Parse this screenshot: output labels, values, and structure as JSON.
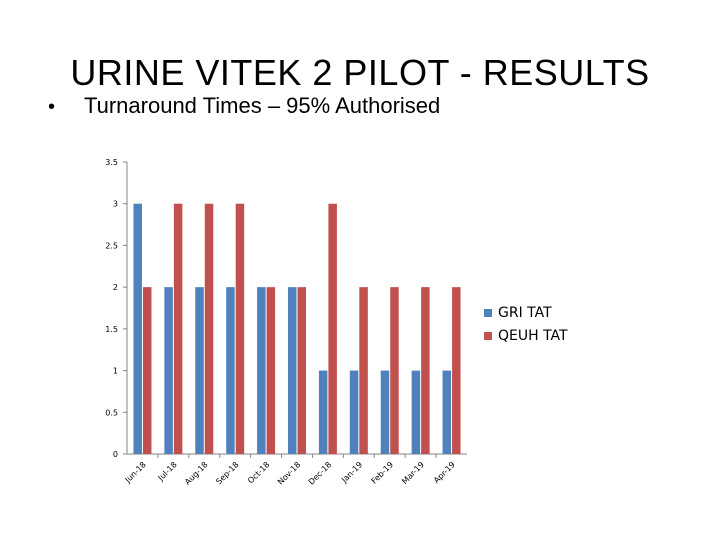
{
  "slide": {
    "title": "URINE VITEK 2 PILOT - RESULTS",
    "bullet_symbol": "•",
    "bullet_text": "Turnaround Times – 95% Authorised"
  },
  "chart_data": {
    "type": "bar",
    "categories": [
      "Jun-18",
      "Jul-18",
      "Aug-18",
      "Sep-18",
      "Oct-18",
      "Nov-18",
      "Dec-18",
      "Jan-19",
      "Feb-19",
      "Mar-19",
      "Apr-19"
    ],
    "series": [
      {
        "name": "GRI TAT",
        "color": "#4f81bd",
        "values": [
          3,
          2,
          2,
          2,
          2,
          2,
          1,
          1,
          1,
          1,
          1
        ]
      },
      {
        "name": "QEUH TAT",
        "color": "#c0504d",
        "values": [
          2,
          3,
          3,
          3,
          2,
          2,
          3,
          2,
          2,
          2,
          2
        ]
      }
    ],
    "ylim": [
      0,
      3.5
    ],
    "yticks": [
      "0",
      "0.5",
      "1",
      "1.5",
      "2",
      "2.5",
      "3",
      "3.5"
    ],
    "grid": false,
    "legend_position": "right"
  }
}
